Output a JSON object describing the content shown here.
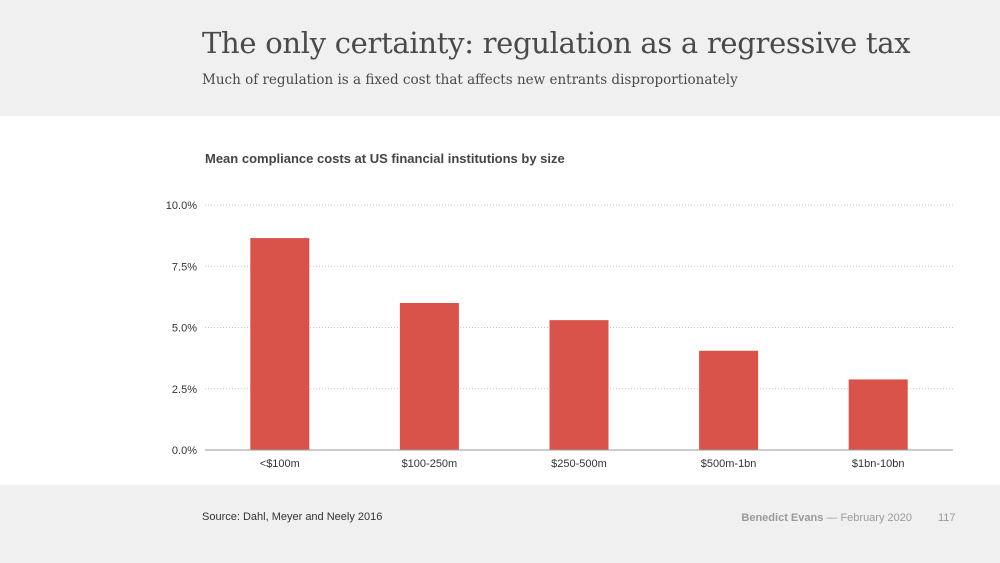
{
  "slide": {
    "title": "The only certainty: regulation as a regressive tax",
    "subtitle": "Much of regulation is a fixed cost that affects new entrants disproportionately",
    "source": "Source: Dahl, Meyer and Neely 2016",
    "author": "Benedict Evans",
    "date": "— February 2020",
    "page_number": "117"
  },
  "colors": {
    "bar": "#d9534a",
    "gridline": "#c8c8c8",
    "header_bg": "#f0f0f0"
  },
  "chart_data": {
    "type": "bar",
    "title": "Mean compliance costs at US financial institutions by size",
    "categories": [
      "<$100m",
      "$100-250m",
      "$250-500m",
      "$500m-1bn",
      "$1bn-10bn"
    ],
    "values": [
      8.65,
      6.0,
      5.3,
      4.05,
      2.88
    ],
    "y_ticks": [
      "0.0%",
      "2.5%",
      "5.0%",
      "7.5%",
      "10.0%"
    ],
    "ylim": [
      0,
      10
    ],
    "grid": true,
    "legend": "none"
  }
}
